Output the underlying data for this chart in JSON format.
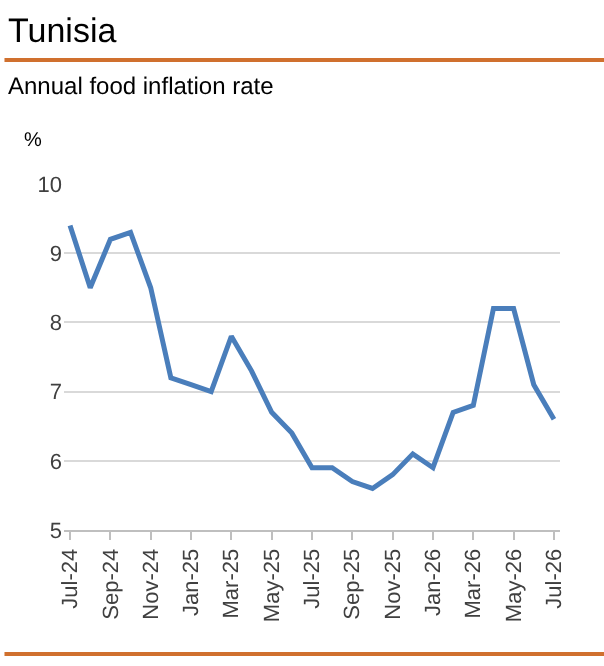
{
  "chart_data": {
    "type": "line",
    "title": "Tunisia",
    "subtitle": "Annual food inflation rate",
    "ylabel": "%",
    "categories": [
      "Jul-24",
      null,
      "Sep-24",
      null,
      "Nov-24",
      null,
      "Jan-25",
      null,
      "Mar-25",
      null,
      "May-25",
      null,
      "Jul-25",
      null,
      "Sep-25",
      null,
      "Nov-25",
      null,
      "Jan-26",
      null,
      "Mar-26",
      null,
      "May-26",
      null,
      "Jul-26"
    ],
    "series": [
      {
        "color": "#4a7ebb",
        "values": [
          9.4,
          8.5,
          9.2,
          9.3,
          8.5,
          7.2,
          7.1,
          7.0,
          7.8,
          7.3,
          6.7,
          6.4,
          5.9,
          5.9,
          5.7,
          5.6,
          5.8,
          6.1,
          5.9,
          6.7,
          6.8,
          8.2,
          8.2,
          7.1,
          6.6
        ]
      }
    ],
    "ylim": [
      5,
      10
    ],
    "yticks": [
      5,
      6,
      7,
      8,
      9,
      10
    ],
    "grid": "y",
    "legend": false,
    "marker": "none",
    "line_style": "solid"
  }
}
